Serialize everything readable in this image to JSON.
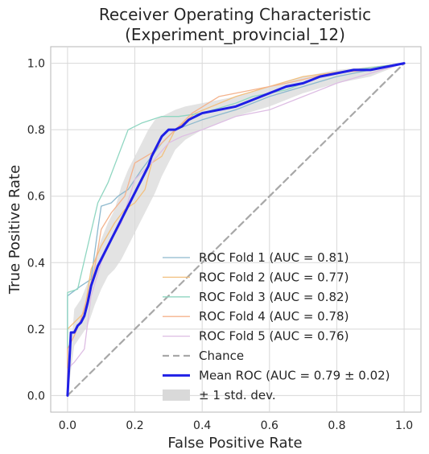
{
  "chart_data": {
    "type": "line",
    "title_line1": "Receiver Operating Characteristic",
    "title_line2": "(Experiment_provincial_12)",
    "xlabel": "False Positive Rate",
    "ylabel": "True Positive Rate",
    "xlim": [
      -0.05,
      1.05
    ],
    "ylim": [
      -0.05,
      1.05
    ],
    "x_ticks": [
      0.0,
      0.2,
      0.4,
      0.6,
      0.8,
      1.0
    ],
    "y_ticks": [
      0.0,
      0.2,
      0.4,
      0.6,
      0.8,
      1.0
    ],
    "x_tick_labels": [
      "0.0",
      "0.2",
      "0.4",
      "0.6",
      "0.8",
      "1.0"
    ],
    "y_tick_labels": [
      "0.0",
      "0.2",
      "0.4",
      "0.6",
      "0.8",
      "1.0"
    ],
    "grid": true,
    "legend_position": "lower-right",
    "series": [
      {
        "name": "ROC Fold 1 (AUC = 0.81)",
        "color": "#8db9ce",
        "points": [
          [
            0,
            0
          ],
          [
            0,
            0.3
          ],
          [
            0.04,
            0.33
          ],
          [
            0.07,
            0.35
          ],
          [
            0.09,
            0.5
          ],
          [
            0.1,
            0.57
          ],
          [
            0.13,
            0.58
          ],
          [
            0.15,
            0.6
          ],
          [
            0.18,
            0.62
          ],
          [
            0.22,
            0.68
          ],
          [
            0.28,
            0.76
          ],
          [
            0.32,
            0.8
          ],
          [
            0.4,
            0.83
          ],
          [
            0.5,
            0.86
          ],
          [
            0.6,
            0.9
          ],
          [
            0.7,
            0.93
          ],
          [
            0.8,
            0.96
          ],
          [
            0.9,
            0.98
          ],
          [
            1,
            1
          ]
        ]
      },
      {
        "name": "ROC Fold 2 (AUC = 0.77)",
        "color": "#f2c07f",
        "points": [
          [
            0,
            0
          ],
          [
            0,
            0.2
          ],
          [
            0.03,
            0.23
          ],
          [
            0.05,
            0.25
          ],
          [
            0.07,
            0.38
          ],
          [
            0.1,
            0.45
          ],
          [
            0.14,
            0.52
          ],
          [
            0.17,
            0.56
          ],
          [
            0.2,
            0.58
          ],
          [
            0.23,
            0.62
          ],
          [
            0.25,
            0.7
          ],
          [
            0.28,
            0.72
          ],
          [
            0.32,
            0.8
          ],
          [
            0.38,
            0.85
          ],
          [
            0.5,
            0.9
          ],
          [
            0.6,
            0.93
          ],
          [
            0.7,
            0.96
          ],
          [
            0.85,
            0.98
          ],
          [
            1,
            1
          ]
        ]
      },
      {
        "name": "ROC Fold 3 (AUC = 0.82)",
        "color": "#8fd6c1",
        "points": [
          [
            0,
            0
          ],
          [
            0,
            0.31
          ],
          [
            0.03,
            0.32
          ],
          [
            0.06,
            0.45
          ],
          [
            0.09,
            0.58
          ],
          [
            0.12,
            0.64
          ],
          [
            0.15,
            0.72
          ],
          [
            0.18,
            0.8
          ],
          [
            0.22,
            0.82
          ],
          [
            0.28,
            0.84
          ],
          [
            0.33,
            0.84
          ],
          [
            0.4,
            0.85
          ],
          [
            0.5,
            0.88
          ],
          [
            0.55,
            0.9
          ],
          [
            0.65,
            0.92
          ],
          [
            0.75,
            0.96
          ],
          [
            0.85,
            0.98
          ],
          [
            1,
            1
          ]
        ]
      },
      {
        "name": "ROC Fold 4 (AUC = 0.78)",
        "color": "#f4b38d",
        "points": [
          [
            0,
            0
          ],
          [
            0,
            0.14
          ],
          [
            0.02,
            0.18
          ],
          [
            0.04,
            0.23
          ],
          [
            0.06,
            0.3
          ],
          [
            0.08,
            0.38
          ],
          [
            0.1,
            0.5
          ],
          [
            0.13,
            0.55
          ],
          [
            0.17,
            0.6
          ],
          [
            0.2,
            0.7
          ],
          [
            0.25,
            0.73
          ],
          [
            0.28,
            0.76
          ],
          [
            0.32,
            0.8
          ],
          [
            0.37,
            0.85
          ],
          [
            0.45,
            0.9
          ],
          [
            0.55,
            0.92
          ],
          [
            0.65,
            0.94
          ],
          [
            0.78,
            0.97
          ],
          [
            0.9,
            0.98
          ],
          [
            1,
            1
          ]
        ]
      },
      {
        "name": "ROC Fold 5 (AUC = 0.76)",
        "color": "#ddbde3",
        "points": [
          [
            0,
            0
          ],
          [
            0,
            0.08
          ],
          [
            0.02,
            0.1
          ],
          [
            0.05,
            0.14
          ],
          [
            0.07,
            0.3
          ],
          [
            0.1,
            0.4
          ],
          [
            0.12,
            0.45
          ],
          [
            0.16,
            0.52
          ],
          [
            0.2,
            0.65
          ],
          [
            0.25,
            0.7
          ],
          [
            0.3,
            0.76
          ],
          [
            0.34,
            0.78
          ],
          [
            0.4,
            0.8
          ],
          [
            0.5,
            0.84
          ],
          [
            0.6,
            0.86
          ],
          [
            0.7,
            0.9
          ],
          [
            0.8,
            0.94
          ],
          [
            0.9,
            0.97
          ],
          [
            1,
            1
          ]
        ]
      },
      {
        "name": "Chance",
        "color": "#a8a8a8",
        "dashed": true,
        "points": [
          [
            0,
            0
          ],
          [
            1,
            1
          ]
        ]
      },
      {
        "name": "Mean ROC (AUC = 0.79 ± 0.02)",
        "color": "#1f1fe6",
        "bold": true,
        "points": [
          [
            0,
            0
          ],
          [
            0.01,
            0.19
          ],
          [
            0.02,
            0.19
          ],
          [
            0.03,
            0.21
          ],
          [
            0.04,
            0.22
          ],
          [
            0.05,
            0.24
          ],
          [
            0.06,
            0.28
          ],
          [
            0.07,
            0.33
          ],
          [
            0.08,
            0.36
          ],
          [
            0.09,
            0.39
          ],
          [
            0.1,
            0.41
          ],
          [
            0.11,
            0.43
          ],
          [
            0.12,
            0.45
          ],
          [
            0.13,
            0.47
          ],
          [
            0.14,
            0.49
          ],
          [
            0.15,
            0.51
          ],
          [
            0.16,
            0.53
          ],
          [
            0.17,
            0.55
          ],
          [
            0.18,
            0.57
          ],
          [
            0.19,
            0.59
          ],
          [
            0.2,
            0.61
          ],
          [
            0.21,
            0.63
          ],
          [
            0.22,
            0.65
          ],
          [
            0.23,
            0.67
          ],
          [
            0.24,
            0.69
          ],
          [
            0.25,
            0.72
          ],
          [
            0.26,
            0.74
          ],
          [
            0.27,
            0.76
          ],
          [
            0.28,
            0.78
          ],
          [
            0.3,
            0.8
          ],
          [
            0.32,
            0.8
          ],
          [
            0.34,
            0.81
          ],
          [
            0.36,
            0.83
          ],
          [
            0.38,
            0.84
          ],
          [
            0.4,
            0.85
          ],
          [
            0.45,
            0.86
          ],
          [
            0.5,
            0.87
          ],
          [
            0.55,
            0.89
          ],
          [
            0.6,
            0.91
          ],
          [
            0.65,
            0.93
          ],
          [
            0.7,
            0.94
          ],
          [
            0.75,
            0.96
          ],
          [
            0.8,
            0.97
          ],
          [
            0.85,
            0.98
          ],
          [
            0.9,
            0.98
          ],
          [
            0.95,
            0.99
          ],
          [
            1,
            1
          ]
        ]
      }
    ],
    "std_band": {
      "name": "± 1 std. dev.",
      "color": "#d9d9d9",
      "lower": [
        [
          0,
          0
        ],
        [
          0.02,
          0.15
        ],
        [
          0.04,
          0.18
        ],
        [
          0.06,
          0.21
        ],
        [
          0.08,
          0.27
        ],
        [
          0.1,
          0.32
        ],
        [
          0.12,
          0.36
        ],
        [
          0.14,
          0.38
        ],
        [
          0.16,
          0.41
        ],
        [
          0.18,
          0.45
        ],
        [
          0.2,
          0.49
        ],
        [
          0.22,
          0.53
        ],
        [
          0.24,
          0.57
        ],
        [
          0.26,
          0.61
        ],
        [
          0.28,
          0.66
        ],
        [
          0.3,
          0.7
        ],
        [
          0.32,
          0.74
        ],
        [
          0.35,
          0.77
        ],
        [
          0.4,
          0.8
        ],
        [
          0.5,
          0.84
        ],
        [
          0.6,
          0.87
        ],
        [
          0.7,
          0.91
        ],
        [
          0.8,
          0.94
        ],
        [
          0.9,
          0.96
        ],
        [
          1,
          1
        ]
      ],
      "upper": [
        [
          0,
          0
        ],
        [
          0.02,
          0.26
        ],
        [
          0.04,
          0.29
        ],
        [
          0.06,
          0.34
        ],
        [
          0.08,
          0.41
        ],
        [
          0.1,
          0.47
        ],
        [
          0.12,
          0.52
        ],
        [
          0.14,
          0.56
        ],
        [
          0.16,
          0.63
        ],
        [
          0.18,
          0.68
        ],
        [
          0.2,
          0.72
        ],
        [
          0.22,
          0.76
        ],
        [
          0.24,
          0.8
        ],
        [
          0.26,
          0.83
        ],
        [
          0.28,
          0.84
        ],
        [
          0.3,
          0.85
        ],
        [
          0.32,
          0.86
        ],
        [
          0.35,
          0.87
        ],
        [
          0.4,
          0.88
        ],
        [
          0.5,
          0.9
        ],
        [
          0.6,
          0.93
        ],
        [
          0.7,
          0.96
        ],
        [
          0.8,
          0.98
        ],
        [
          0.9,
          0.99
        ],
        [
          1,
          1
        ]
      ]
    },
    "legend_entries": [
      "ROC Fold 1 (AUC = 0.81)",
      "ROC Fold 2 (AUC = 0.77)",
      "ROC Fold 3 (AUC = 0.82)",
      "ROC Fold 4 (AUC = 0.78)",
      "ROC Fold 5 (AUC = 0.76)",
      "Chance",
      "Mean ROC (AUC = 0.79 ± 0.02)",
      "± 1 std. dev."
    ]
  }
}
